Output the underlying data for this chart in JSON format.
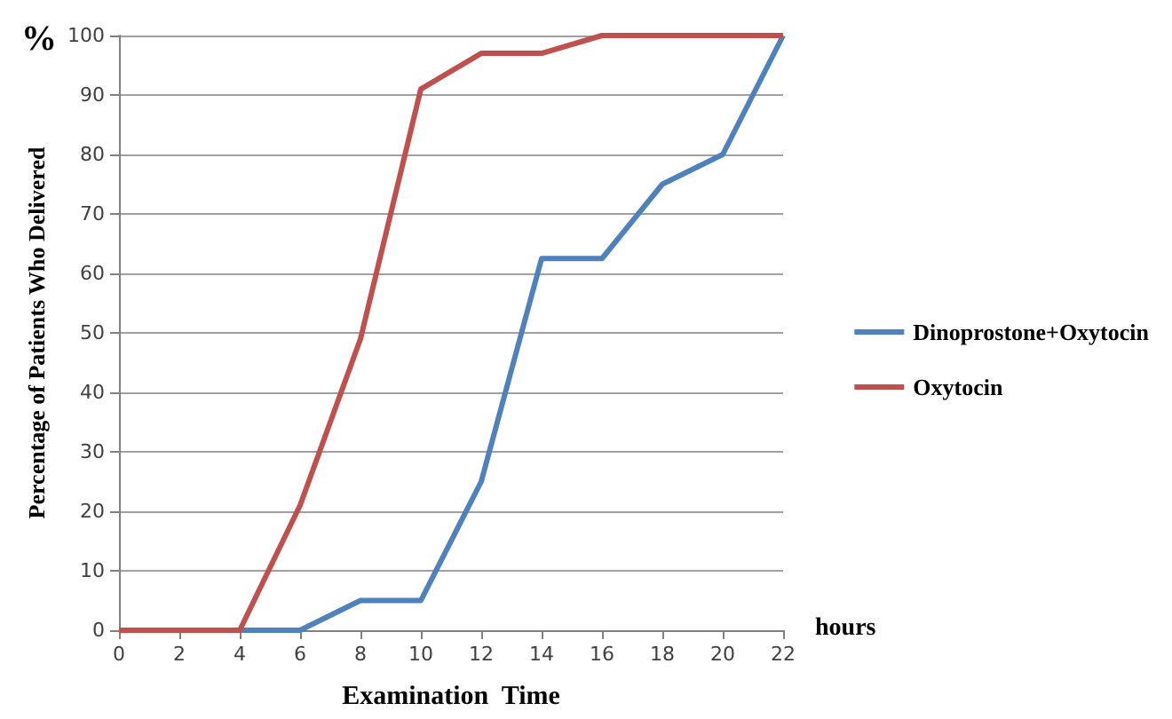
{
  "chart_data": {
    "type": "line",
    "xlabel": "Examination  Time",
    "ylabel": "Percentage of Patients Who Delivered",
    "annotations": [
      "%",
      "hours"
    ],
    "x": [
      0,
      2,
      4,
      6,
      8,
      10,
      12,
      14,
      16,
      18,
      20,
      22
    ],
    "series": [
      {
        "name": "Dinoprostone+Oxytocin",
        "color": "#4f81bd",
        "values": [
          0,
          0,
          0,
          0,
          5,
          5,
          25,
          62.5,
          62.5,
          75,
          80,
          100
        ]
      },
      {
        "name": "Oxytocin",
        "color": "#c0504d",
        "values": [
          0,
          0,
          0,
          21,
          49,
          91,
          97,
          97,
          100,
          100,
          100,
          100
        ]
      }
    ],
    "xlim": [
      0,
      22
    ],
    "xticks": [
      0,
      2,
      4,
      6,
      8,
      10,
      12,
      14,
      16,
      18,
      20,
      22
    ],
    "ylim": [
      0,
      100
    ],
    "yticks": [
      0,
      10,
      20,
      30,
      40,
      50,
      60,
      70,
      80,
      90,
      100
    ],
    "grid": "y",
    "legend": "right",
    "marker": "none",
    "line_style": "solid"
  }
}
